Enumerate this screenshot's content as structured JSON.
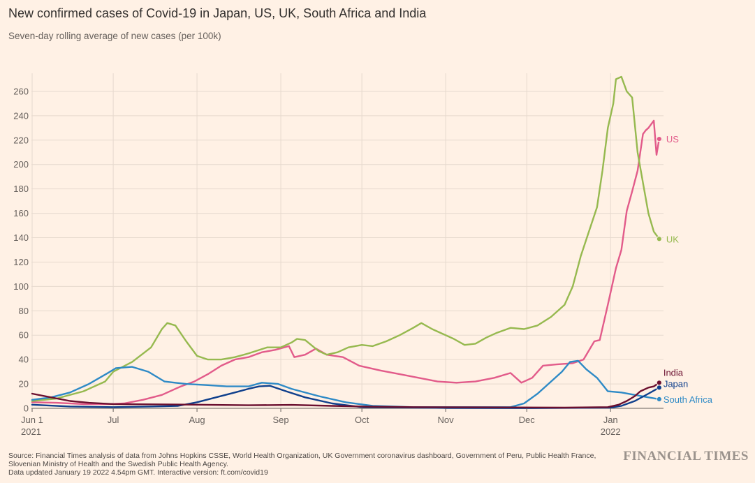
{
  "header": {
    "title": "New confirmed cases of Covid-19 in Japan, US, UK, South Africa and India",
    "subtitle": "Seven-day rolling average of new cases (per 100k)"
  },
  "footer": {
    "source_line1": "Source: Financial Times analysis of data from Johns Hopkins CSSE, World Health Organization, UK Government coronavirus dashboard, Government of Peru, Public Health France,",
    "source_line2": "Slovenian Ministry of Health and the Swedish Public Health Agency.",
    "updated": "Data updated January 19 2022 4.54pm GMT. Interactive version: ft.com/covid19",
    "brand": "FINANCIAL TIMES"
  },
  "chart_data": {
    "type": "line",
    "title": "New confirmed cases of Covid-19 in Japan, US, UK, South Africa and India",
    "subtitle": "Seven-day rolling average of new cases (per 100k)",
    "xlabel": "",
    "ylabel": "",
    "ylim": [
      0,
      270
    ],
    "xlim": [
      "2021-06-01",
      "2022-01-19"
    ],
    "grid": true,
    "legend": "end-of-line labels",
    "y_ticks": [
      0,
      20,
      40,
      60,
      80,
      100,
      120,
      140,
      160,
      180,
      200,
      220,
      240,
      260
    ],
    "x_ticks": [
      {
        "date": "2021-06-01",
        "label": "Jun 1",
        "sublabel": "2021"
      },
      {
        "date": "2021-07-01",
        "label": "Jul",
        "sublabel": ""
      },
      {
        "date": "2021-08-01",
        "label": "Aug",
        "sublabel": ""
      },
      {
        "date": "2021-09-01",
        "label": "Sep",
        "sublabel": ""
      },
      {
        "date": "2021-10-01",
        "label": "Oct",
        "sublabel": ""
      },
      {
        "date": "2021-11-01",
        "label": "Nov",
        "sublabel": ""
      },
      {
        "date": "2021-12-01",
        "label": "Dec",
        "sublabel": ""
      },
      {
        "date": "2022-01-01",
        "label": "Jan",
        "sublabel": "2022"
      }
    ],
    "series": [
      {
        "name": "US",
        "color": "#e25b8a",
        "points": [
          [
            "2021-06-01",
            5
          ],
          [
            "2021-06-10",
            4.5
          ],
          [
            "2021-06-20",
            3.5
          ],
          [
            "2021-06-30",
            3.5
          ],
          [
            "2021-07-05",
            4
          ],
          [
            "2021-07-12",
            7
          ],
          [
            "2021-07-19",
            11
          ],
          [
            "2021-07-26",
            18
          ],
          [
            "2021-07-31",
            22
          ],
          [
            "2021-08-05",
            28
          ],
          [
            "2021-08-10",
            35
          ],
          [
            "2021-08-15",
            40
          ],
          [
            "2021-08-20",
            42
          ],
          [
            "2021-08-25",
            46
          ],
          [
            "2021-08-30",
            48
          ],
          [
            "2021-09-04",
            51
          ],
          [
            "2021-09-06",
            42
          ],
          [
            "2021-09-10",
            44
          ],
          [
            "2021-09-14",
            49
          ],
          [
            "2021-09-18",
            44
          ],
          [
            "2021-09-24",
            42
          ],
          [
            "2021-09-30",
            35
          ],
          [
            "2021-10-08",
            31
          ],
          [
            "2021-10-15",
            28
          ],
          [
            "2021-10-22",
            25
          ],
          [
            "2021-10-29",
            22
          ],
          [
            "2021-11-05",
            21
          ],
          [
            "2021-11-12",
            22
          ],
          [
            "2021-11-19",
            25
          ],
          [
            "2021-11-25",
            29
          ],
          [
            "2021-11-29",
            21
          ],
          [
            "2021-12-03",
            25
          ],
          [
            "2021-12-07",
            35
          ],
          [
            "2021-12-12",
            36
          ],
          [
            "2021-12-18",
            37
          ],
          [
            "2021-12-22",
            40
          ],
          [
            "2021-12-26",
            55
          ],
          [
            "2021-12-28",
            56
          ],
          [
            "2021-12-31",
            85
          ],
          [
            "2022-01-03",
            115
          ],
          [
            "2022-01-05",
            130
          ],
          [
            "2022-01-07",
            162
          ],
          [
            "2022-01-09",
            178
          ],
          [
            "2022-01-11",
            195
          ],
          [
            "2022-01-13",
            225
          ],
          [
            "2022-01-14",
            228
          ],
          [
            "2022-01-15",
            230
          ],
          [
            "2022-01-17",
            236
          ],
          [
            "2022-01-18",
            208
          ],
          [
            "2022-01-19",
            221
          ]
        ]
      },
      {
        "name": "UK",
        "color": "#96b94f",
        "points": [
          [
            "2021-06-01",
            6
          ],
          [
            "2021-06-10",
            8
          ],
          [
            "2021-06-20",
            14
          ],
          [
            "2021-06-28",
            22
          ],
          [
            "2021-07-01",
            30
          ],
          [
            "2021-07-08",
            38
          ],
          [
            "2021-07-15",
            50
          ],
          [
            "2021-07-19",
            65
          ],
          [
            "2021-07-21",
            70
          ],
          [
            "2021-07-24",
            68
          ],
          [
            "2021-07-28",
            55
          ],
          [
            "2021-08-01",
            43
          ],
          [
            "2021-08-05",
            40
          ],
          [
            "2021-08-10",
            40
          ],
          [
            "2021-08-15",
            42
          ],
          [
            "2021-08-20",
            45
          ],
          [
            "2021-08-27",
            50
          ],
          [
            "2021-09-01",
            50
          ],
          [
            "2021-09-05",
            54
          ],
          [
            "2021-09-07",
            57
          ],
          [
            "2021-09-10",
            56
          ],
          [
            "2021-09-15",
            47
          ],
          [
            "2021-09-18",
            44
          ],
          [
            "2021-09-22",
            46
          ],
          [
            "2021-09-26",
            50
          ],
          [
            "2021-10-01",
            52
          ],
          [
            "2021-10-05",
            51
          ],
          [
            "2021-10-10",
            55
          ],
          [
            "2021-10-15",
            60
          ],
          [
            "2021-10-20",
            66
          ],
          [
            "2021-10-23",
            70
          ],
          [
            "2021-10-27",
            65
          ],
          [
            "2021-10-31",
            61
          ],
          [
            "2021-11-04",
            57
          ],
          [
            "2021-11-08",
            52
          ],
          [
            "2021-11-12",
            53
          ],
          [
            "2021-11-16",
            58
          ],
          [
            "2021-11-20",
            62
          ],
          [
            "2021-11-25",
            66
          ],
          [
            "2021-11-30",
            65
          ],
          [
            "2021-12-05",
            68
          ],
          [
            "2021-12-10",
            75
          ],
          [
            "2021-12-15",
            85
          ],
          [
            "2021-12-18",
            100
          ],
          [
            "2021-12-21",
            125
          ],
          [
            "2021-12-24",
            145
          ],
          [
            "2021-12-27",
            165
          ],
          [
            "2021-12-29",
            195
          ],
          [
            "2021-12-31",
            230
          ],
          [
            "2022-01-02",
            250
          ],
          [
            "2022-01-03",
            270
          ],
          [
            "2022-01-05",
            272
          ],
          [
            "2022-01-07",
            260
          ],
          [
            "2022-01-09",
            255
          ],
          [
            "2022-01-11",
            210
          ],
          [
            "2022-01-13",
            185
          ],
          [
            "2022-01-15",
            160
          ],
          [
            "2022-01-17",
            145
          ],
          [
            "2022-01-19",
            139
          ]
        ]
      },
      {
        "name": "South Africa",
        "color": "#2e8ac6",
        "points": [
          [
            "2021-06-01",
            7
          ],
          [
            "2021-06-08",
            9
          ],
          [
            "2021-06-15",
            13
          ],
          [
            "2021-06-22",
            20
          ],
          [
            "2021-06-29",
            29
          ],
          [
            "2021-07-02",
            33
          ],
          [
            "2021-07-08",
            34
          ],
          [
            "2021-07-14",
            30
          ],
          [
            "2021-07-20",
            22
          ],
          [
            "2021-07-28",
            20
          ],
          [
            "2021-08-05",
            19
          ],
          [
            "2021-08-12",
            18
          ],
          [
            "2021-08-20",
            18
          ],
          [
            "2021-08-25",
            21
          ],
          [
            "2021-08-31",
            20
          ],
          [
            "2021-09-05",
            16
          ],
          [
            "2021-09-15",
            10
          ],
          [
            "2021-09-25",
            5
          ],
          [
            "2021-10-05",
            2
          ],
          [
            "2021-10-20",
            1
          ],
          [
            "2021-11-15",
            1
          ],
          [
            "2021-11-25",
            1
          ],
          [
            "2021-11-30",
            4
          ],
          [
            "2021-12-05",
            12
          ],
          [
            "2021-12-10",
            22
          ],
          [
            "2021-12-14",
            30
          ],
          [
            "2021-12-17",
            38
          ],
          [
            "2021-12-20",
            39
          ],
          [
            "2021-12-23",
            32
          ],
          [
            "2021-12-27",
            25
          ],
          [
            "2021-12-31",
            14
          ],
          [
            "2022-01-05",
            13
          ],
          [
            "2022-01-10",
            11
          ],
          [
            "2022-01-15",
            9
          ],
          [
            "2022-01-19",
            7.5
          ]
        ]
      },
      {
        "name": "Japan",
        "color": "#0f3f8c",
        "points": [
          [
            "2021-06-01",
            3
          ],
          [
            "2021-06-15",
            1.5
          ],
          [
            "2021-07-01",
            1
          ],
          [
            "2021-07-15",
            1.5
          ],
          [
            "2021-07-25",
            2
          ],
          [
            "2021-08-01",
            5
          ],
          [
            "2021-08-08",
            9
          ],
          [
            "2021-08-15",
            13
          ],
          [
            "2021-08-20",
            16
          ],
          [
            "2021-08-24",
            18
          ],
          [
            "2021-08-28",
            18.5
          ],
          [
            "2021-09-03",
            14
          ],
          [
            "2021-09-10",
            9
          ],
          [
            "2021-09-20",
            4
          ],
          [
            "2021-10-01",
            1
          ],
          [
            "2021-11-01",
            0.3
          ],
          [
            "2021-12-01",
            0.2
          ],
          [
            "2022-01-01",
            0.5
          ],
          [
            "2022-01-05",
            2
          ],
          [
            "2022-01-10",
            6
          ],
          [
            "2022-01-15",
            12
          ],
          [
            "2022-01-19",
            17
          ]
        ]
      },
      {
        "name": "India",
        "color": "#6b0f2f",
        "points": [
          [
            "2021-06-01",
            12
          ],
          [
            "2021-06-08",
            9
          ],
          [
            "2021-06-15",
            6
          ],
          [
            "2021-06-22",
            4.5
          ],
          [
            "2021-07-01",
            3.5
          ],
          [
            "2021-08-01",
            3
          ],
          [
            "2021-08-20",
            2.5
          ],
          [
            "2021-09-05",
            2.8
          ],
          [
            "2021-09-20",
            2
          ],
          [
            "2021-10-01",
            1.5
          ],
          [
            "2021-10-20",
            1
          ],
          [
            "2021-11-15",
            0.8
          ],
          [
            "2021-12-15",
            0.6
          ],
          [
            "2021-12-31",
            1
          ],
          [
            "2022-01-04",
            3
          ],
          [
            "2022-01-07",
            6
          ],
          [
            "2022-01-10",
            10
          ],
          [
            "2022-01-12",
            14
          ],
          [
            "2022-01-15",
            17
          ],
          [
            "2022-01-17",
            18
          ],
          [
            "2022-01-19",
            21
          ]
        ]
      }
    ]
  }
}
